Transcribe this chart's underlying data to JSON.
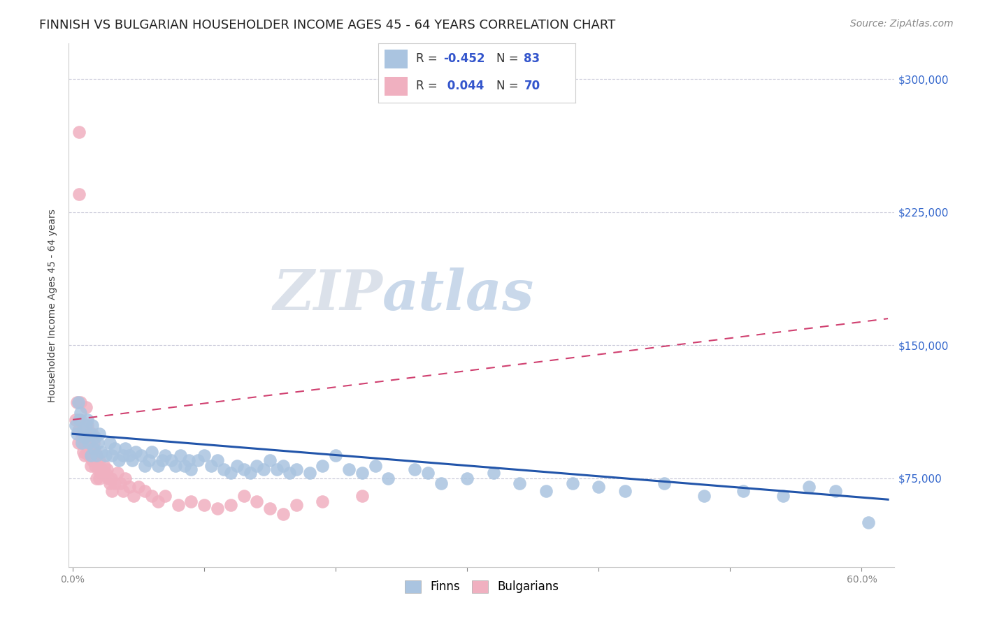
{
  "title": "FINNISH VS BULGARIAN HOUSEHOLDER INCOME AGES 45 - 64 YEARS CORRELATION CHART",
  "source": "Source: ZipAtlas.com",
  "ylabel": "Householder Income Ages 45 - 64 years",
  "ytick_labels": [
    "$75,000",
    "$150,000",
    "$225,000",
    "$300,000"
  ],
  "ytick_values": [
    75000,
    150000,
    225000,
    300000
  ],
  "ymax": 320000,
  "ymin": 25000,
  "xmin": -0.003,
  "xmax": 0.625,
  "finn_color": "#aac4e0",
  "finn_line_color": "#2255aa",
  "bulg_color": "#f0b0c0",
  "bulg_line_color": "#d04070",
  "watermark_zip_color": "#d0d8e0",
  "watermark_atlas_color": "#b8cce4",
  "title_fontsize": 13,
  "source_fontsize": 10,
  "legend_fontsize": 13,
  "axis_label_fontsize": 10,
  "tick_fontsize": 10,
  "finns_x": [
    0.002,
    0.003,
    0.004,
    0.005,
    0.006,
    0.007,
    0.008,
    0.009,
    0.01,
    0.011,
    0.012,
    0.013,
    0.014,
    0.015,
    0.016,
    0.017,
    0.018,
    0.019,
    0.02,
    0.022,
    0.025,
    0.028,
    0.03,
    0.032,
    0.035,
    0.038,
    0.04,
    0.043,
    0.045,
    0.048,
    0.052,
    0.055,
    0.058,
    0.06,
    0.065,
    0.068,
    0.07,
    0.075,
    0.078,
    0.082,
    0.085,
    0.088,
    0.09,
    0.095,
    0.1,
    0.105,
    0.11,
    0.115,
    0.12,
    0.125,
    0.13,
    0.135,
    0.14,
    0.145,
    0.15,
    0.155,
    0.16,
    0.165,
    0.17,
    0.18,
    0.19,
    0.2,
    0.21,
    0.22,
    0.23,
    0.24,
    0.26,
    0.27,
    0.28,
    0.3,
    0.32,
    0.34,
    0.36,
    0.38,
    0.4,
    0.42,
    0.45,
    0.48,
    0.51,
    0.54,
    0.56,
    0.58,
    0.605
  ],
  "finns_y": [
    105000,
    100000,
    118000,
    108000,
    112000,
    95000,
    102000,
    98000,
    105000,
    108000,
    95000,
    100000,
    88000,
    105000,
    92000,
    98000,
    88000,
    95000,
    100000,
    90000,
    88000,
    95000,
    88000,
    92000,
    85000,
    88000,
    92000,
    88000,
    85000,
    90000,
    88000,
    82000,
    85000,
    90000,
    82000,
    85000,
    88000,
    85000,
    82000,
    88000,
    82000,
    85000,
    80000,
    85000,
    88000,
    82000,
    85000,
    80000,
    78000,
    82000,
    80000,
    78000,
    82000,
    80000,
    85000,
    80000,
    82000,
    78000,
    80000,
    78000,
    82000,
    88000,
    80000,
    78000,
    82000,
    75000,
    80000,
    78000,
    72000,
    75000,
    78000,
    72000,
    68000,
    72000,
    70000,
    68000,
    72000,
    65000,
    68000,
    65000,
    70000,
    68000,
    50000
  ],
  "bulgarians_x": [
    0.002,
    0.003,
    0.004,
    0.004,
    0.005,
    0.005,
    0.006,
    0.006,
    0.007,
    0.007,
    0.008,
    0.008,
    0.009,
    0.009,
    0.01,
    0.01,
    0.011,
    0.011,
    0.012,
    0.012,
    0.013,
    0.013,
    0.014,
    0.014,
    0.015,
    0.015,
    0.016,
    0.016,
    0.017,
    0.017,
    0.018,
    0.018,
    0.019,
    0.019,
    0.02,
    0.02,
    0.021,
    0.022,
    0.023,
    0.024,
    0.025,
    0.026,
    0.027,
    0.028,
    0.029,
    0.03,
    0.032,
    0.034,
    0.036,
    0.038,
    0.04,
    0.043,
    0.046,
    0.05,
    0.055,
    0.06,
    0.065,
    0.07,
    0.08,
    0.09,
    0.1,
    0.11,
    0.12,
    0.13,
    0.14,
    0.15,
    0.16,
    0.17,
    0.19,
    0.22
  ],
  "bulgarians_y": [
    108000,
    118000,
    95000,
    102000,
    235000,
    270000,
    118000,
    108000,
    95000,
    100000,
    90000,
    105000,
    88000,
    95000,
    100000,
    115000,
    90000,
    105000,
    88000,
    98000,
    95000,
    88000,
    92000,
    82000,
    100000,
    85000,
    88000,
    95000,
    82000,
    90000,
    88000,
    75000,
    82000,
    80000,
    75000,
    85000,
    78000,
    80000,
    78000,
    82000,
    78000,
    80000,
    75000,
    72000,
    75000,
    68000,
    72000,
    78000,
    72000,
    68000,
    75000,
    70000,
    65000,
    70000,
    68000,
    65000,
    62000,
    65000,
    60000,
    62000,
    60000,
    58000,
    60000,
    65000,
    62000,
    58000,
    55000,
    60000,
    62000,
    65000
  ]
}
